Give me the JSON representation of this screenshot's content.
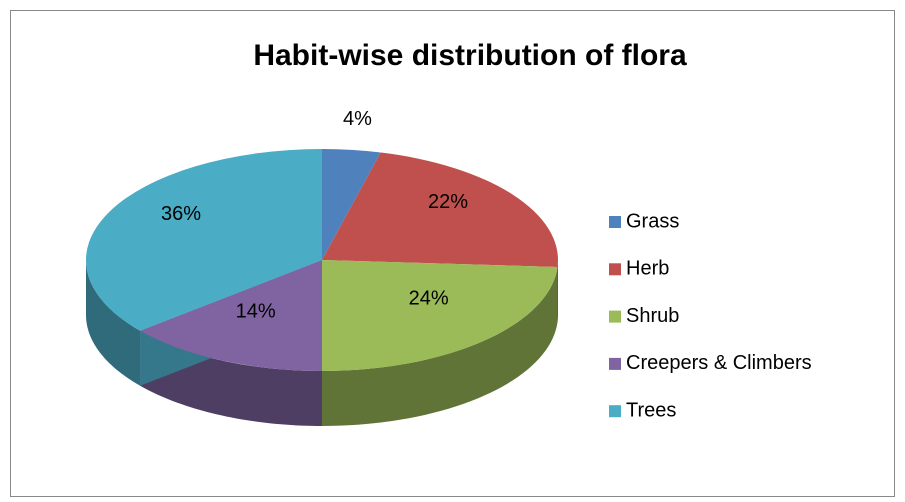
{
  "chart_data": {
    "type": "pie",
    "title": "Habit-wise distribution of flora",
    "categories": [
      "Grass",
      "Herb",
      "Shrub",
      "Creepers & Climbers",
      "Trees"
    ],
    "values": [
      4,
      22,
      24,
      14,
      36
    ],
    "value_labels": [
      "4%",
      "22%",
      "24%",
      "14%",
      "36%"
    ],
    "colors": [
      "#4f81bd",
      "#c0504d",
      "#9bbb59",
      "#8064a2",
      "#4bacc6"
    ],
    "legend": "right"
  }
}
